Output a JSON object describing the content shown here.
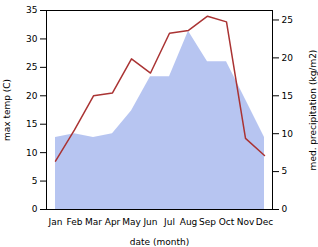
{
  "chart_data": {
    "type": "line",
    "xlabel": "date (month)",
    "ylabel": "max temp (C)",
    "y2label": "med. precipitation (kg/m2)",
    "categories": [
      "Jan",
      "Feb",
      "Mar",
      "Apr",
      "May",
      "Jun",
      "Jul",
      "Aug",
      "Sep",
      "Oct",
      "Nov",
      "Dec"
    ],
    "series": [
      {
        "type": "area",
        "axis": "y2",
        "color": "#aabbee",
        "values": [
          9.5,
          10.0,
          9.5,
          10.0,
          13.0,
          17.5,
          17.5,
          23.5,
          19.5,
          19.5,
          14.5,
          9.5
        ]
      },
      {
        "type": "line",
        "color": "#aa3333",
        "values": [
          8.5,
          14.0,
          20.0,
          20.5,
          26.5,
          24.0,
          31.0,
          31.5,
          34.0,
          33.0,
          12.5,
          9.5
        ]
      }
    ],
    "ylim": [
      0,
      35
    ],
    "yticks": [
      0,
      5,
      10,
      15,
      20,
      25,
      30,
      35
    ],
    "y2lim": [
      0,
      26.25
    ],
    "y2ticks": [
      0,
      5,
      10,
      15,
      20,
      25
    ]
  }
}
